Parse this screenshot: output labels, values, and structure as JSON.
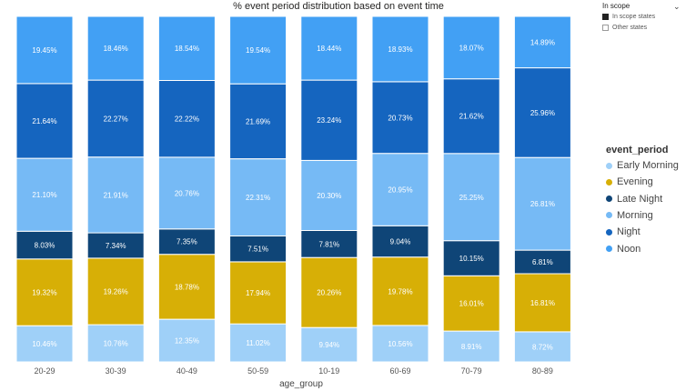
{
  "chart_data": {
    "type": "bar",
    "stacked": true,
    "normalized_percent": true,
    "title": "% event period distribution based on event time",
    "xlabel": "age_group",
    "ylabel": "",
    "ylim": [
      0,
      100
    ],
    "categories": [
      "20-29",
      "30-39",
      "40-49",
      "50-59",
      "10-19",
      "60-69",
      "70-79",
      "80-89"
    ],
    "series": [
      {
        "name": "Early Morning",
        "color": "#9fd0f8",
        "values": [
          10.46,
          10.76,
          12.35,
          11.02,
          9.94,
          10.56,
          8.91,
          8.72
        ],
        "labels": [
          "10.46%",
          "10.76%",
          "12.35%",
          "11.02%",
          "9.94%",
          "10.56%",
          "8.91%",
          "8.72%"
        ]
      },
      {
        "name": "Evening",
        "color": "#d7af06",
        "values": [
          19.32,
          19.26,
          18.78,
          17.94,
          20.26,
          19.78,
          16.01,
          16.81
        ],
        "labels": [
          "19.32%",
          "19.26%",
          "18.78%",
          "17.94%",
          "20.26%",
          "19.78%",
          "16.01%",
          "16.81%"
        ]
      },
      {
        "name": "Late Night",
        "color": "#0f4577",
        "values": [
          8.03,
          7.34,
          7.35,
          7.51,
          7.81,
          9.04,
          10.15,
          6.81
        ],
        "labels": [
          "8.03%",
          "7.34%",
          "7.35%",
          "7.51%",
          "7.81%",
          "9.04%",
          "10.15%",
          "6.81%"
        ]
      },
      {
        "name": "Morning",
        "color": "#76baf5",
        "values": [
          21.1,
          21.91,
          20.76,
          22.31,
          20.3,
          20.95,
          25.25,
          26.81
        ],
        "labels": [
          "21.10%",
          "21.91%",
          "20.76%",
          "22.31%",
          "20.30%",
          "20.95%",
          "25.25%",
          "26.81%"
        ]
      },
      {
        "name": "Night",
        "color": "#1565bf",
        "values": [
          21.64,
          22.27,
          22.22,
          21.69,
          23.24,
          20.73,
          21.62,
          25.96
        ],
        "labels": [
          "21.64%",
          "22.27%",
          "22.22%",
          "21.69%",
          "23.24%",
          "20.73%",
          "21.62%",
          "25.96%"
        ]
      },
      {
        "name": "Noon",
        "color": "#42a0f4",
        "values": [
          19.45,
          18.46,
          18.54,
          19.54,
          18.44,
          18.93,
          18.07,
          14.89
        ],
        "labels": [
          "19.45%",
          "18.46%",
          "18.54%",
          "19.54%",
          "18.44%",
          "18.93%",
          "18.07%",
          "14.89%"
        ]
      }
    ],
    "legend": {
      "title": "event_period",
      "placement": "right"
    },
    "grid": false
  },
  "in_scope": {
    "title": "In scope",
    "items": [
      {
        "label": "In scope states",
        "filled": true
      },
      {
        "label": "Other states",
        "filled": false
      }
    ]
  },
  "icons": {
    "collapse": "chevron-down-icon"
  }
}
